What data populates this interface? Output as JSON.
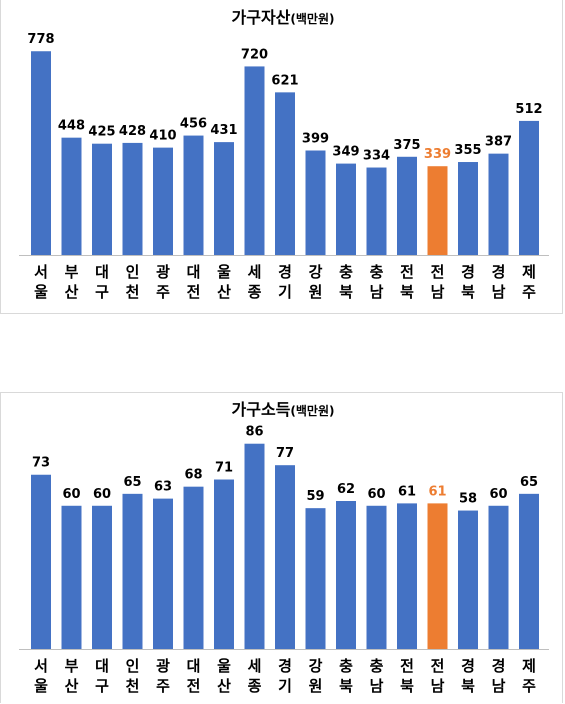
{
  "colors": {
    "bar": "#4472C4",
    "highlight": "#ED7D31",
    "axis": "#bfbfbf",
    "label": "#000000"
  },
  "chart_data": [
    {
      "type": "bar",
      "title": "가구자산",
      "title_unit": "(백만원)",
      "categories": [
        [
          "서",
          "울"
        ],
        [
          "부",
          "산"
        ],
        [
          "대",
          "구"
        ],
        [
          "인",
          "천"
        ],
        [
          "광",
          "주"
        ],
        [
          "대",
          "전"
        ],
        [
          "울",
          "산"
        ],
        [
          "세",
          "종"
        ],
        [
          "경",
          "기"
        ],
        [
          "강",
          "원"
        ],
        [
          "충",
          "북"
        ],
        [
          "충",
          "남"
        ],
        [
          "전",
          "북"
        ],
        [
          "전",
          "남"
        ],
        [
          "경",
          "북"
        ],
        [
          "경",
          "남"
        ],
        [
          "제",
          "주"
        ]
      ],
      "values": [
        778,
        448,
        425,
        428,
        410,
        456,
        431,
        720,
        621,
        399,
        349,
        334,
        375,
        339,
        355,
        387,
        512
      ],
      "highlight_index": 13,
      "ylim": [
        0,
        840
      ],
      "grid": false,
      "legend": "none"
    },
    {
      "type": "bar",
      "title": "가구소득",
      "title_unit": "(백만원)",
      "categories": [
        [
          "서",
          "울"
        ],
        [
          "부",
          "산"
        ],
        [
          "대",
          "구"
        ],
        [
          "인",
          "천"
        ],
        [
          "광",
          "주"
        ],
        [
          "대",
          "전"
        ],
        [
          "울",
          "산"
        ],
        [
          "세",
          "종"
        ],
        [
          "경",
          "기"
        ],
        [
          "강",
          "원"
        ],
        [
          "충",
          "북"
        ],
        [
          "충",
          "남"
        ],
        [
          "전",
          "북"
        ],
        [
          "전",
          "남"
        ],
        [
          "경",
          "북"
        ],
        [
          "경",
          "남"
        ],
        [
          "제",
          "주"
        ]
      ],
      "values": [
        73,
        60,
        60,
        65,
        63,
        68,
        71,
        86,
        77,
        59,
        62,
        60,
        61,
        61,
        58,
        60,
        65
      ],
      "highlight_index": 13,
      "ylim": [
        0,
        93
      ],
      "grid": false,
      "legend": "none"
    }
  ]
}
